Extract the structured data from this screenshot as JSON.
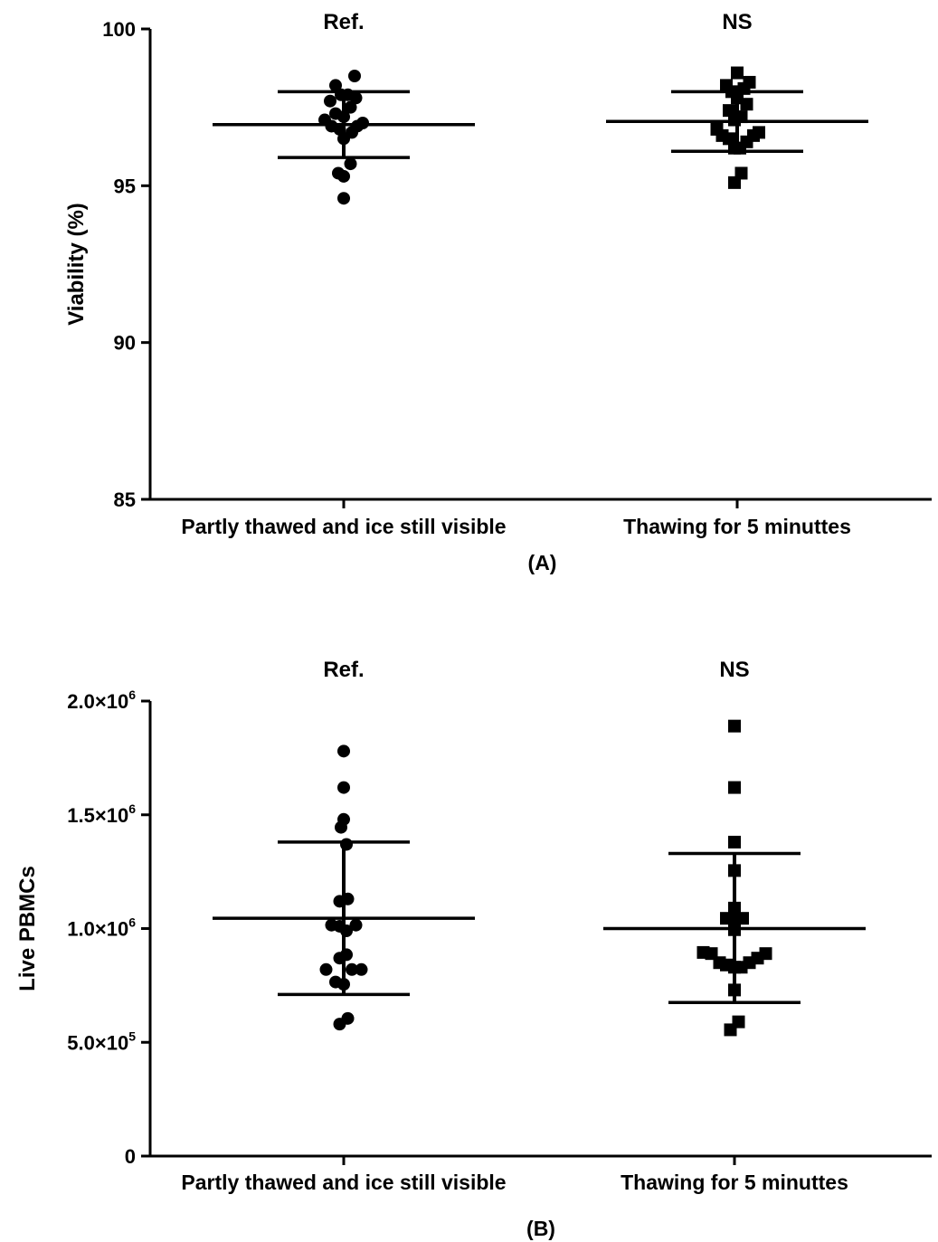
{
  "chart_data": [
    {
      "type": "scatter",
      "panel_label": "(A)",
      "ylabel": "Viability (%)",
      "ylim": [
        85,
        100
      ],
      "yticks": [
        {
          "value": 85,
          "label": "85"
        },
        {
          "value": 90,
          "label": "90"
        },
        {
          "value": 95,
          "label": "95"
        },
        {
          "value": 100,
          "label": "100"
        }
      ],
      "categories": [
        "Partly thawed and ice still visible",
        "Thawing for 5 minuttes"
      ],
      "significance": [
        "Ref.",
        "NS"
      ],
      "series": [
        {
          "marker": "circle",
          "mean": 96.95,
          "sd_low": 95.9,
          "sd_high": 98.0,
          "points": [
            {
              "dx": -0.7,
              "y": 97.1
            },
            {
              "dx": -0.5,
              "y": 97.7
            },
            {
              "dx": -0.3,
              "y": 98.2
            },
            {
              "dx": -0.45,
              "y": 96.9
            },
            {
              "dx": -0.3,
              "y": 97.3
            },
            {
              "dx": -0.15,
              "y": 96.8
            },
            {
              "dx": -0.1,
              "y": 97.9
            },
            {
              "dx": 0.0,
              "y": 97.2
            },
            {
              "dx": 0.0,
              "y": 96.5
            },
            {
              "dx": 0.15,
              "y": 97.9
            },
            {
              "dx": 0.25,
              "y": 97.5
            },
            {
              "dx": 0.3,
              "y": 96.7
            },
            {
              "dx": 0.45,
              "y": 97.8
            },
            {
              "dx": 0.5,
              "y": 96.9
            },
            {
              "dx": 0.7,
              "y": 97.0
            },
            {
              "dx": 0.4,
              "y": 98.5
            },
            {
              "dx": -0.2,
              "y": 95.4
            },
            {
              "dx": 0.0,
              "y": 95.3
            },
            {
              "dx": 0.25,
              "y": 95.7
            },
            {
              "dx": 0.0,
              "y": 94.6
            }
          ]
        },
        {
          "marker": "square",
          "mean": 97.05,
          "sd_low": 96.1,
          "sd_high": 98.0,
          "points": [
            {
              "dx": -0.75,
              "y": 96.8
            },
            {
              "dx": -0.55,
              "y": 96.6
            },
            {
              "dx": -0.4,
              "y": 98.2
            },
            {
              "dx": -0.3,
              "y": 96.5
            },
            {
              "dx": -0.3,
              "y": 97.4
            },
            {
              "dx": -0.2,
              "y": 98.0
            },
            {
              "dx": -0.1,
              "y": 97.1
            },
            {
              "dx": 0.0,
              "y": 97.8
            },
            {
              "dx": 0.0,
              "y": 98.6
            },
            {
              "dx": -0.1,
              "y": 96.2
            },
            {
              "dx": 0.15,
              "y": 97.2
            },
            {
              "dx": 0.1,
              "y": 96.2
            },
            {
              "dx": 0.25,
              "y": 98.1
            },
            {
              "dx": 0.35,
              "y": 97.6
            },
            {
              "dx": 0.35,
              "y": 96.4
            },
            {
              "dx": 0.45,
              "y": 98.3
            },
            {
              "dx": 0.6,
              "y": 96.6
            },
            {
              "dx": 0.8,
              "y": 96.7
            },
            {
              "dx": -0.1,
              "y": 95.1
            },
            {
              "dx": 0.15,
              "y": 95.4
            }
          ]
        }
      ]
    },
    {
      "type": "scatter",
      "panel_label": "(B)",
      "ylabel": "Live PBMCs",
      "ylim": [
        0,
        2000000
      ],
      "yticks": [
        {
          "value": 0,
          "mant": "0",
          "exp": ""
        },
        {
          "value": 500000,
          "mant": "5.0×10",
          "exp": "5"
        },
        {
          "value": 1000000,
          "mant": "1.0×10",
          "exp": "6"
        },
        {
          "value": 1500000,
          "mant": "1.5×10",
          "exp": "6"
        },
        {
          "value": 2000000,
          "mant": "2.0×10",
          "exp": "6"
        }
      ],
      "categories": [
        "Partly thawed and ice still visible",
        "Thawing for 5 minuttes"
      ],
      "significance": [
        "Ref.",
        "NS"
      ],
      "series": [
        {
          "marker": "circle",
          "mean": 1045000,
          "sd_low": 710000,
          "sd_high": 1380000,
          "points": [
            {
              "dx": 0.0,
              "y": 1780000
            },
            {
              "dx": 0.0,
              "y": 1620000
            },
            {
              "dx": 0.0,
              "y": 1480000
            },
            {
              "dx": -0.1,
              "y": 1445000
            },
            {
              "dx": 0.1,
              "y": 1370000
            },
            {
              "dx": -0.15,
              "y": 1120000
            },
            {
              "dx": 0.15,
              "y": 1130000
            },
            {
              "dx": -0.45,
              "y": 1015000
            },
            {
              "dx": -0.15,
              "y": 1010000
            },
            {
              "dx": 0.1,
              "y": 990000
            },
            {
              "dx": 0.45,
              "y": 1015000
            },
            {
              "dx": -0.15,
              "y": 870000
            },
            {
              "dx": 0.1,
              "y": 885000
            },
            {
              "dx": -0.65,
              "y": 820000
            },
            {
              "dx": -0.3,
              "y": 765000
            },
            {
              "dx": 0.0,
              "y": 755000
            },
            {
              "dx": 0.3,
              "y": 820000
            },
            {
              "dx": 0.65,
              "y": 820000
            },
            {
              "dx": -0.15,
              "y": 580000
            },
            {
              "dx": 0.15,
              "y": 605000
            }
          ]
        },
        {
          "marker": "square",
          "mean": 1000000,
          "sd_low": 675000,
          "sd_high": 1330000,
          "points": [
            {
              "dx": 0.0,
              "y": 1890000
            },
            {
              "dx": 0.0,
              "y": 1620000
            },
            {
              "dx": 0.0,
              "y": 1380000
            },
            {
              "dx": 0.0,
              "y": 1255000
            },
            {
              "dx": 0.0,
              "y": 1090000
            },
            {
              "dx": -0.3,
              "y": 1045000
            },
            {
              "dx": 0.3,
              "y": 1045000
            },
            {
              "dx": 0.0,
              "y": 995000
            },
            {
              "dx": -1.15,
              "y": 895000
            },
            {
              "dx": -0.85,
              "y": 890000
            },
            {
              "dx": -0.55,
              "y": 850000
            },
            {
              "dx": -0.3,
              "y": 840000
            },
            {
              "dx": 0.0,
              "y": 830000
            },
            {
              "dx": 0.25,
              "y": 830000
            },
            {
              "dx": 0.55,
              "y": 850000
            },
            {
              "dx": 0.85,
              "y": 870000
            },
            {
              "dx": 1.15,
              "y": 890000
            },
            {
              "dx": 0.0,
              "y": 730000
            },
            {
              "dx": -0.15,
              "y": 555000
            },
            {
              "dx": 0.15,
              "y": 590000
            }
          ]
        }
      ]
    }
  ]
}
